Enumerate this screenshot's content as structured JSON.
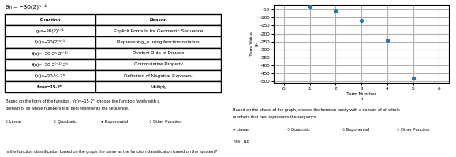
{
  "chart_data": {
    "type": "scatter",
    "title": "9ₙ = −30(2)ⁿ⁻¹",
    "x": [
      1,
      2,
      3,
      4,
      5
    ],
    "values": [
      -30,
      -60,
      -120,
      -240,
      -480
    ],
    "xlabel": "Term Number\nn",
    "ylabel": "Term Value\ngₙ",
    "xlim": [
      -0.4,
      6.4
    ],
    "ylim": [
      -510,
      -20
    ],
    "xticks": [
      0,
      1,
      2,
      3,
      4,
      5,
      6
    ],
    "yticks": [
      -50,
      -100,
      -150,
      -200,
      -250,
      -300,
      -350,
      -400,
      -450,
      -500
    ],
    "grid": true,
    "annotations": [
      "Function",
      "Reason",
      "gₙ=−30(2)ⁿ⁻¹",
      "Explicit Formula for Geometric Sequence",
      "f(n)=−30(2)ⁿ⁻¹",
      "Represent g_n using function notation",
      "f(n)=−30·2ⁿ·2⁽⁻¹⁾",
      "Product Rule of Powers",
      "f(n)=−30·2⁽⁻¹⁾·2ⁿ",
      "Commutative Property",
      "f(n)=−30·½·2ⁿ",
      "Definition of Negative Exponent",
      "f(n)=−15·2ⁿ",
      "Multiply",
      "Based on the form of the function, f(n)=−15·2ⁿ, choose the function family with a",
      "domain of all whole numbers that best represents the sequence.",
      "○ Linear",
      "○ Quadratic",
      "● Exponential",
      "○ Other Function",
      "Based on the shape of the graph, choose the function family with a domain of all whole",
      "numbers that best represents the sequence.",
      "● Linear",
      "○ Quadratic",
      "○ Exponential",
      "○ Other Function",
      "Yes   No",
      "Is the function classification based on the graph the same as the function classification based on the function?"
    ]
  }
}
